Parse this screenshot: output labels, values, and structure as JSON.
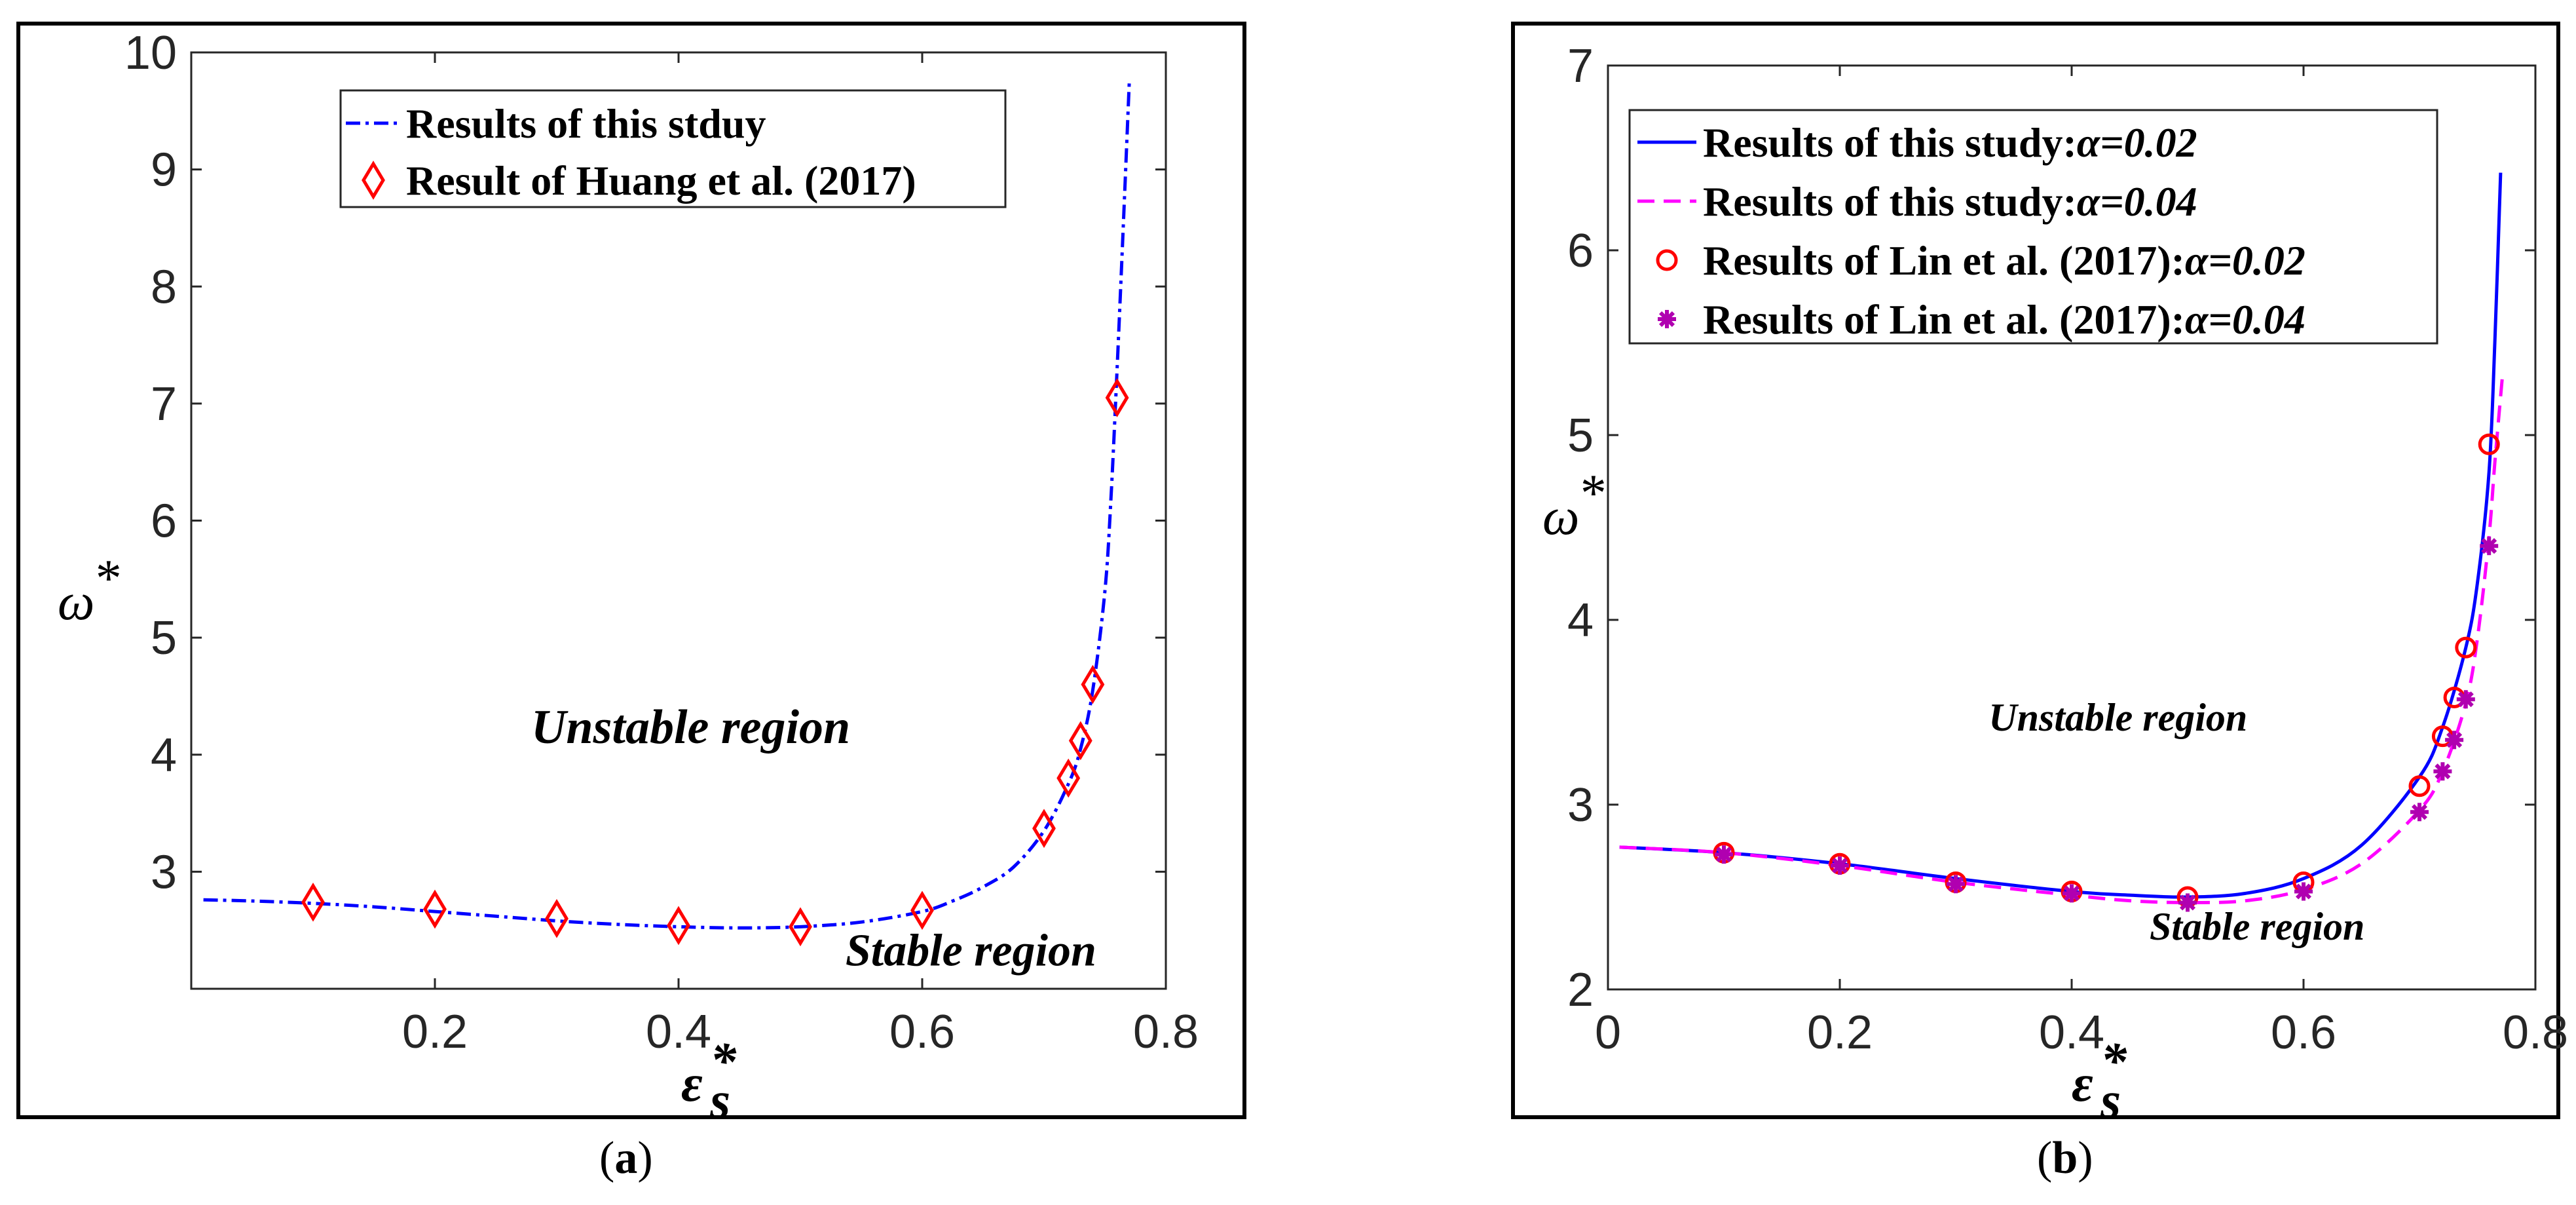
{
  "chart_data": [
    {
      "type": "line",
      "caption": "(a)",
      "caption_letter": "a",
      "xlabel": "ε",
      "xlabel_sub": "s",
      "xlabel_sup": "*",
      "ylabel": "ω",
      "ylabel_sup": "*",
      "xlim": [
        0,
        0.8
      ],
      "ylim": [
        2,
        10
      ],
      "xticks": [
        0.2,
        0.4,
        0.6,
        0.8
      ],
      "xtick_labels": [
        "0.2",
        "0.4",
        "0.6",
        "0.8"
      ],
      "yticks": [
        3,
        4,
        5,
        6,
        7,
        8,
        9,
        10
      ],
      "ytick_labels": [
        "3",
        "4",
        "5",
        "6",
        "7",
        "8",
        "9",
        "10"
      ],
      "legend_position": "top-right",
      "annotations": [
        {
          "text": "Unstable region",
          "x": 0.41,
          "y": 4.1
        },
        {
          "text": "Stable region",
          "x": 0.64,
          "y": 2.2
        }
      ],
      "series": [
        {
          "name": "Results of this stduy",
          "style": "dashdot",
          "color": "#0000ff",
          "x": [
            0.01,
            0.05,
            0.1,
            0.15,
            0.2,
            0.25,
            0.3,
            0.35,
            0.4,
            0.45,
            0.5,
            0.55,
            0.6,
            0.625,
            0.65,
            0.675,
            0.7,
            0.72,
            0.73,
            0.74,
            0.75,
            0.755,
            0.76,
            0.765,
            0.77
          ],
          "y": [
            2.76,
            2.75,
            2.73,
            2.7,
            2.66,
            2.62,
            2.58,
            2.55,
            2.53,
            2.52,
            2.53,
            2.57,
            2.66,
            2.75,
            2.87,
            3.04,
            3.35,
            3.75,
            4.05,
            4.55,
            5.4,
            6.2,
            7.3,
            8.5,
            9.75
          ]
        },
        {
          "name": "Result of Huang et al. (2017)",
          "style": "markers-diamond",
          "color": "#ff0000",
          "x": [
            0.1,
            0.2,
            0.3,
            0.4,
            0.5,
            0.6,
            0.7,
            0.72,
            0.73,
            0.74,
            0.76
          ],
          "y": [
            2.74,
            2.68,
            2.6,
            2.54,
            2.53,
            2.67,
            3.37,
            3.8,
            4.12,
            4.6,
            7.05
          ]
        }
      ]
    },
    {
      "type": "line",
      "caption": "(b)",
      "caption_letter": "b",
      "xlabel": "ε",
      "xlabel_sub": "s",
      "xlabel_sup": "*",
      "ylabel": "ω",
      "ylabel_sup": "*",
      "xlim": [
        0,
        0.8
      ],
      "ylim": [
        2,
        7
      ],
      "xticks": [
        0,
        0.2,
        0.4,
        0.6,
        0.8
      ],
      "xtick_labels": [
        "0",
        "0.2",
        "0.4",
        "0.6",
        "0.8"
      ],
      "yticks": [
        2,
        3,
        4,
        5,
        6,
        7
      ],
      "ytick_labels": [
        "2",
        "3",
        "4",
        "5",
        "6",
        "7"
      ],
      "legend_position": "top-left",
      "annotations": [
        {
          "text": "Unstable region",
          "x": 0.44,
          "y": 3.4
        },
        {
          "text": "Stable region",
          "x": 0.56,
          "y": 2.27
        }
      ],
      "series": [
        {
          "name": "Results of this study:",
          "alpha": "α=0.02",
          "style": "solid",
          "color": "#0000ff",
          "x": [
            0.01,
            0.1,
            0.2,
            0.3,
            0.4,
            0.45,
            0.5,
            0.55,
            0.6,
            0.65,
            0.7,
            0.72,
            0.74,
            0.75,
            0.76,
            0.765,
            0.77
          ],
          "y": [
            2.77,
            2.74,
            2.68,
            2.6,
            2.53,
            2.51,
            2.5,
            2.52,
            2.6,
            2.78,
            3.15,
            3.42,
            3.85,
            4.2,
            4.8,
            5.5,
            6.42
          ]
        },
        {
          "name": "Results of this study:",
          "alpha": "α=0.04",
          "style": "dashed",
          "color": "#ff00ff",
          "x": [
            0.01,
            0.1,
            0.2,
            0.3,
            0.4,
            0.45,
            0.5,
            0.55,
            0.6,
            0.65,
            0.7,
            0.72,
            0.74,
            0.75,
            0.76,
            0.765,
            0.772
          ],
          "y": [
            2.77,
            2.74,
            2.67,
            2.58,
            2.51,
            2.48,
            2.47,
            2.48,
            2.54,
            2.68,
            2.97,
            3.18,
            3.55,
            3.9,
            4.45,
            4.85,
            5.35
          ]
        },
        {
          "name": "Results of Lin et al. (2017):",
          "alpha": "α=0.02",
          "style": "markers-circle",
          "color": "#ff0000",
          "x": [
            0.1,
            0.2,
            0.3,
            0.4,
            0.5,
            0.6,
            0.7,
            0.72,
            0.73,
            0.74,
            0.76
          ],
          "y": [
            2.74,
            2.68,
            2.58,
            2.53,
            2.5,
            2.58,
            3.1,
            3.37,
            3.58,
            3.85,
            4.95
          ]
        },
        {
          "name": "Results of Lin et al. (2017):",
          "alpha": "α=0.04",
          "style": "markers-asterisk",
          "color": "#b000b0",
          "x": [
            0.1,
            0.2,
            0.3,
            0.4,
            0.5,
            0.6,
            0.7,
            0.72,
            0.73,
            0.74,
            0.76
          ],
          "y": [
            2.73,
            2.67,
            2.57,
            2.52,
            2.47,
            2.53,
            2.96,
            3.18,
            3.35,
            3.57,
            4.4
          ]
        }
      ]
    }
  ]
}
